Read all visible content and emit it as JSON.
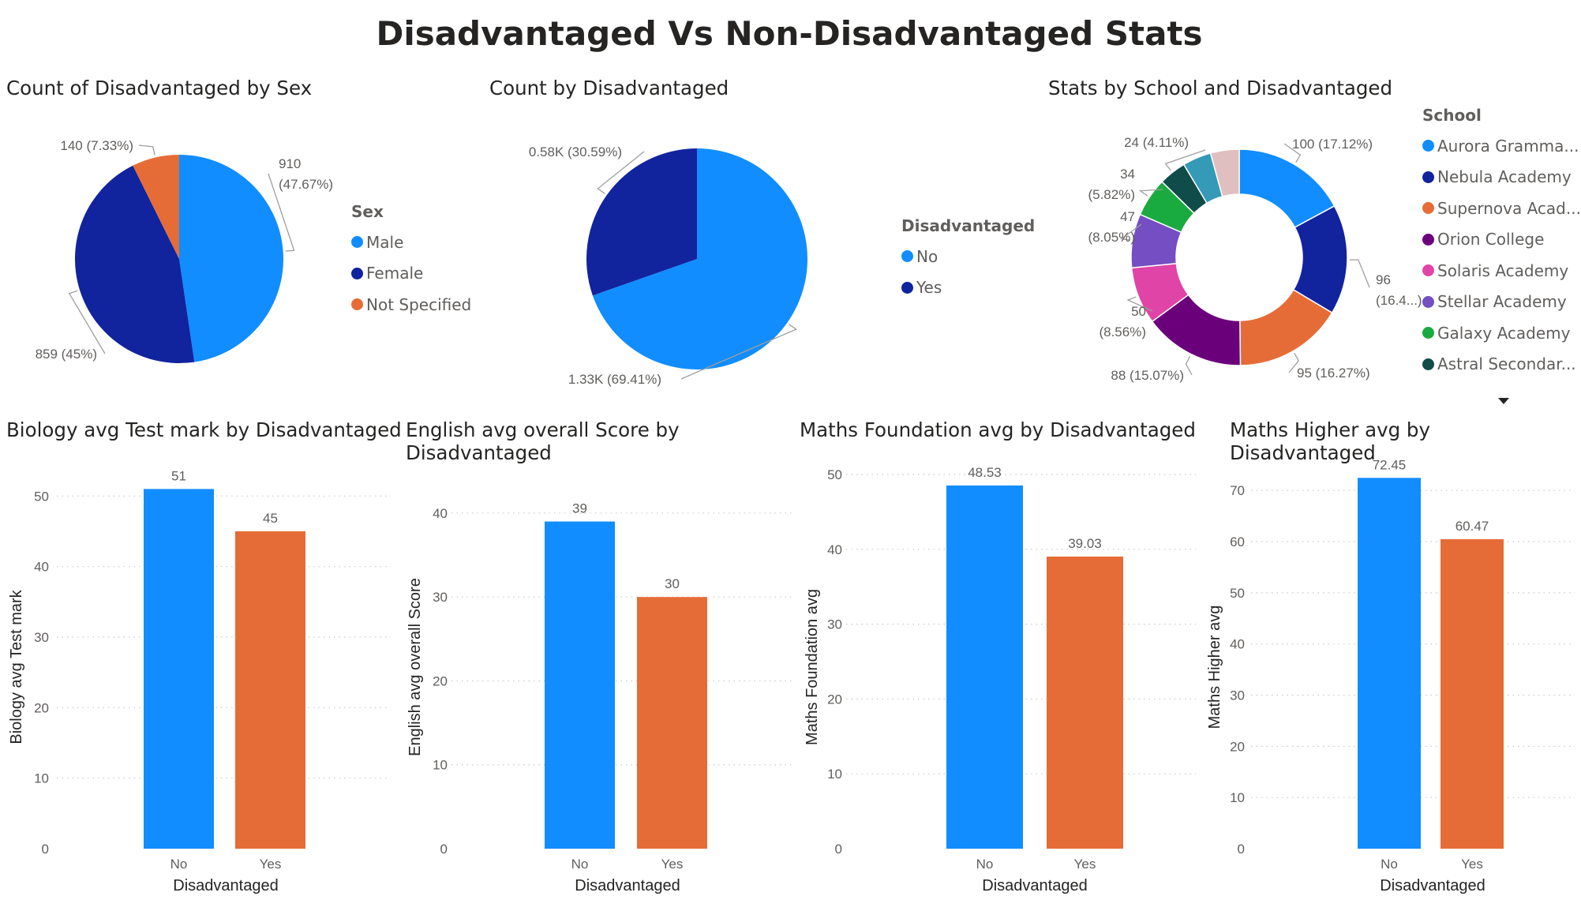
{
  "page_title": "Disadvantaged Vs Non-Disadvantaged Stats",
  "colors": {
    "blue": "#118DFF",
    "navy": "#12239E",
    "orange": "#E66C37",
    "purple": "#6B007B",
    "pink": "#E044A7",
    "violet": "#744EC2",
    "green": "#1AAB40",
    "dark_teal": "#0F4C4A",
    "teal": "#3599B8",
    "light_pink": "#DFBFBF"
  },
  "legends": {
    "sex": {
      "title": "Sex",
      "items": [
        {
          "label": "Male",
          "color": "#118DFF"
        },
        {
          "label": "Female",
          "color": "#12239E"
        },
        {
          "label": "Not Specified",
          "color": "#E66C37"
        }
      ]
    },
    "disadvantaged": {
      "title": "Disadvantaged",
      "items": [
        {
          "label": "No",
          "color": "#118DFF"
        },
        {
          "label": "Yes",
          "color": "#12239E"
        }
      ]
    },
    "school": {
      "title": "School",
      "items": [
        {
          "label": "Aurora Gramma...",
          "color": "#118DFF"
        },
        {
          "label": "Nebula Academy",
          "color": "#12239E"
        },
        {
          "label": "Supernova Acad...",
          "color": "#E66C37"
        },
        {
          "label": "Orion College",
          "color": "#6B007B"
        },
        {
          "label": "Solaris Academy",
          "color": "#E044A7"
        },
        {
          "label": "Stellar Academy",
          "color": "#744EC2"
        },
        {
          "label": "Galaxy Academy",
          "color": "#1AAB40"
        },
        {
          "label": "Astral Secondar...",
          "color": "#0F4C4A"
        }
      ]
    }
  },
  "chart_data": [
    {
      "id": "sex_pie",
      "type": "pie",
      "title": "Count of Disadvantaged by Sex",
      "legend_title": "Sex",
      "slices": [
        {
          "label": "Male",
          "value": 910,
          "percent": 47.67,
          "color": "#118DFF",
          "data_label": [
            "910",
            "(47.67%)"
          ]
        },
        {
          "label": "Female",
          "value": 859,
          "percent": 45.0,
          "color": "#12239E",
          "data_label": [
            "859 (45%)"
          ]
        },
        {
          "label": "Not Specified",
          "value": 140,
          "percent": 7.33,
          "color": "#E66C37",
          "data_label": [
            "140 (7.33%)"
          ]
        }
      ]
    },
    {
      "id": "disadv_pie",
      "type": "pie",
      "title": "Count by Disadvantaged",
      "legend_title": "Disadvantaged",
      "slices": [
        {
          "label": "No",
          "value": 1330,
          "percent": 69.41,
          "color": "#118DFF",
          "data_label": [
            "1.33K (69.41%)"
          ]
        },
        {
          "label": "Yes",
          "value": 580,
          "percent": 30.59,
          "color": "#12239E",
          "data_label": [
            "0.58K (30.59%)"
          ]
        }
      ]
    },
    {
      "id": "school_donut",
      "type": "pie",
      "title": "Stats by School and Disadvantaged",
      "legend_title": "School",
      "slices": [
        {
          "label": "Aurora Gramma...",
          "value": 100,
          "percent": 17.12,
          "color": "#118DFF",
          "data_label": [
            "100 (17.12%)"
          ]
        },
        {
          "label": "Nebula Academy",
          "value": 96,
          "percent": 16.44,
          "color": "#12239E",
          "data_label": [
            "96",
            "(16.4...)"
          ]
        },
        {
          "label": "Supernova Acad...",
          "value": 95,
          "percent": 16.27,
          "color": "#E66C37",
          "data_label": [
            "95 (16.27%)"
          ]
        },
        {
          "label": "Orion College",
          "value": 88,
          "percent": 15.07,
          "color": "#6B007B",
          "data_label": [
            "88 (15.07%)"
          ]
        },
        {
          "label": "Solaris Academy",
          "value": 50,
          "percent": 8.56,
          "color": "#E044A7",
          "data_label": [
            "50",
            "(8.56%)"
          ]
        },
        {
          "label": "Stellar Academy",
          "value": 47,
          "percent": 8.05,
          "color": "#744EC2",
          "data_label": [
            "47",
            "(8.05%)"
          ]
        },
        {
          "label": "Galaxy Academy",
          "value": 34,
          "percent": 5.82,
          "color": "#1AAB40",
          "data_label": [
            "34",
            "(5.82%)"
          ]
        },
        {
          "label": "Astral Secondar...",
          "value": 24,
          "percent": 4.11,
          "color": "#0F4C4A",
          "data_label": [
            "24 (4.11%)"
          ]
        },
        {
          "value": 25,
          "percent": 4.28,
          "color": "#3599B8",
          "data_label": []
        },
        {
          "value": 25,
          "percent": 4.28,
          "color": "#DFBFBF",
          "data_label": []
        }
      ]
    },
    {
      "id": "biology_bar",
      "type": "bar",
      "title": "Biology avg Test mark by Disadvantaged",
      "xlabel": "Disadvantaged",
      "ylabel": "Biology avg Test mark",
      "categories": [
        "No",
        "Yes"
      ],
      "values": [
        51,
        45
      ],
      "value_labels": [
        "51",
        "45"
      ],
      "colors": [
        "#118DFF",
        "#E66C37"
      ],
      "ylim": [
        0,
        52.5
      ],
      "yticks": [
        0,
        10,
        20,
        30,
        40,
        50
      ],
      "grid": true
    },
    {
      "id": "english_bar",
      "type": "bar",
      "title": "English avg overall Score by Disadvantaged",
      "xlabel": "Disadvantaged",
      "ylabel": "English avg overall Score",
      "categories": [
        "No",
        "Yes"
      ],
      "values": [
        39,
        30
      ],
      "value_labels": [
        "39",
        "30"
      ],
      "colors": [
        "#118DFF",
        "#E66C37"
      ],
      "ylim": [
        0,
        41.5
      ],
      "yticks": [
        0,
        10,
        20,
        30,
        40
      ],
      "grid": true
    },
    {
      "id": "maths_foundation_bar",
      "type": "bar",
      "title": "Maths Foundation avg by Disadvantaged",
      "xlabel": "Disadvantaged",
      "ylabel": "Maths Foundation avg",
      "categories": [
        "No",
        "Yes"
      ],
      "values": [
        48.53,
        39.03
      ],
      "value_labels": [
        "48.53",
        "39.03"
      ],
      "colors": [
        "#118DFF",
        "#E66C37"
      ],
      "ylim": [
        0,
        50
      ],
      "yticks": [
        0,
        10,
        20,
        30,
        40,
        50
      ],
      "grid": true
    },
    {
      "id": "maths_higher_bar",
      "type": "bar",
      "title": "Maths Higher avg by Disadvantaged",
      "xlabel": "Disadvantaged",
      "ylabel": "Maths Higher avg",
      "categories": [
        "No",
        "Yes"
      ],
      "values": [
        72.45,
        60.47
      ],
      "value_labels": [
        "72.45",
        "60.47"
      ],
      "colors": [
        "#118DFF",
        "#E66C37"
      ],
      "ylim": [
        0,
        72.5
      ],
      "yticks": [
        0,
        10,
        20,
        30,
        40,
        50,
        60,
        70
      ],
      "grid": true
    }
  ]
}
